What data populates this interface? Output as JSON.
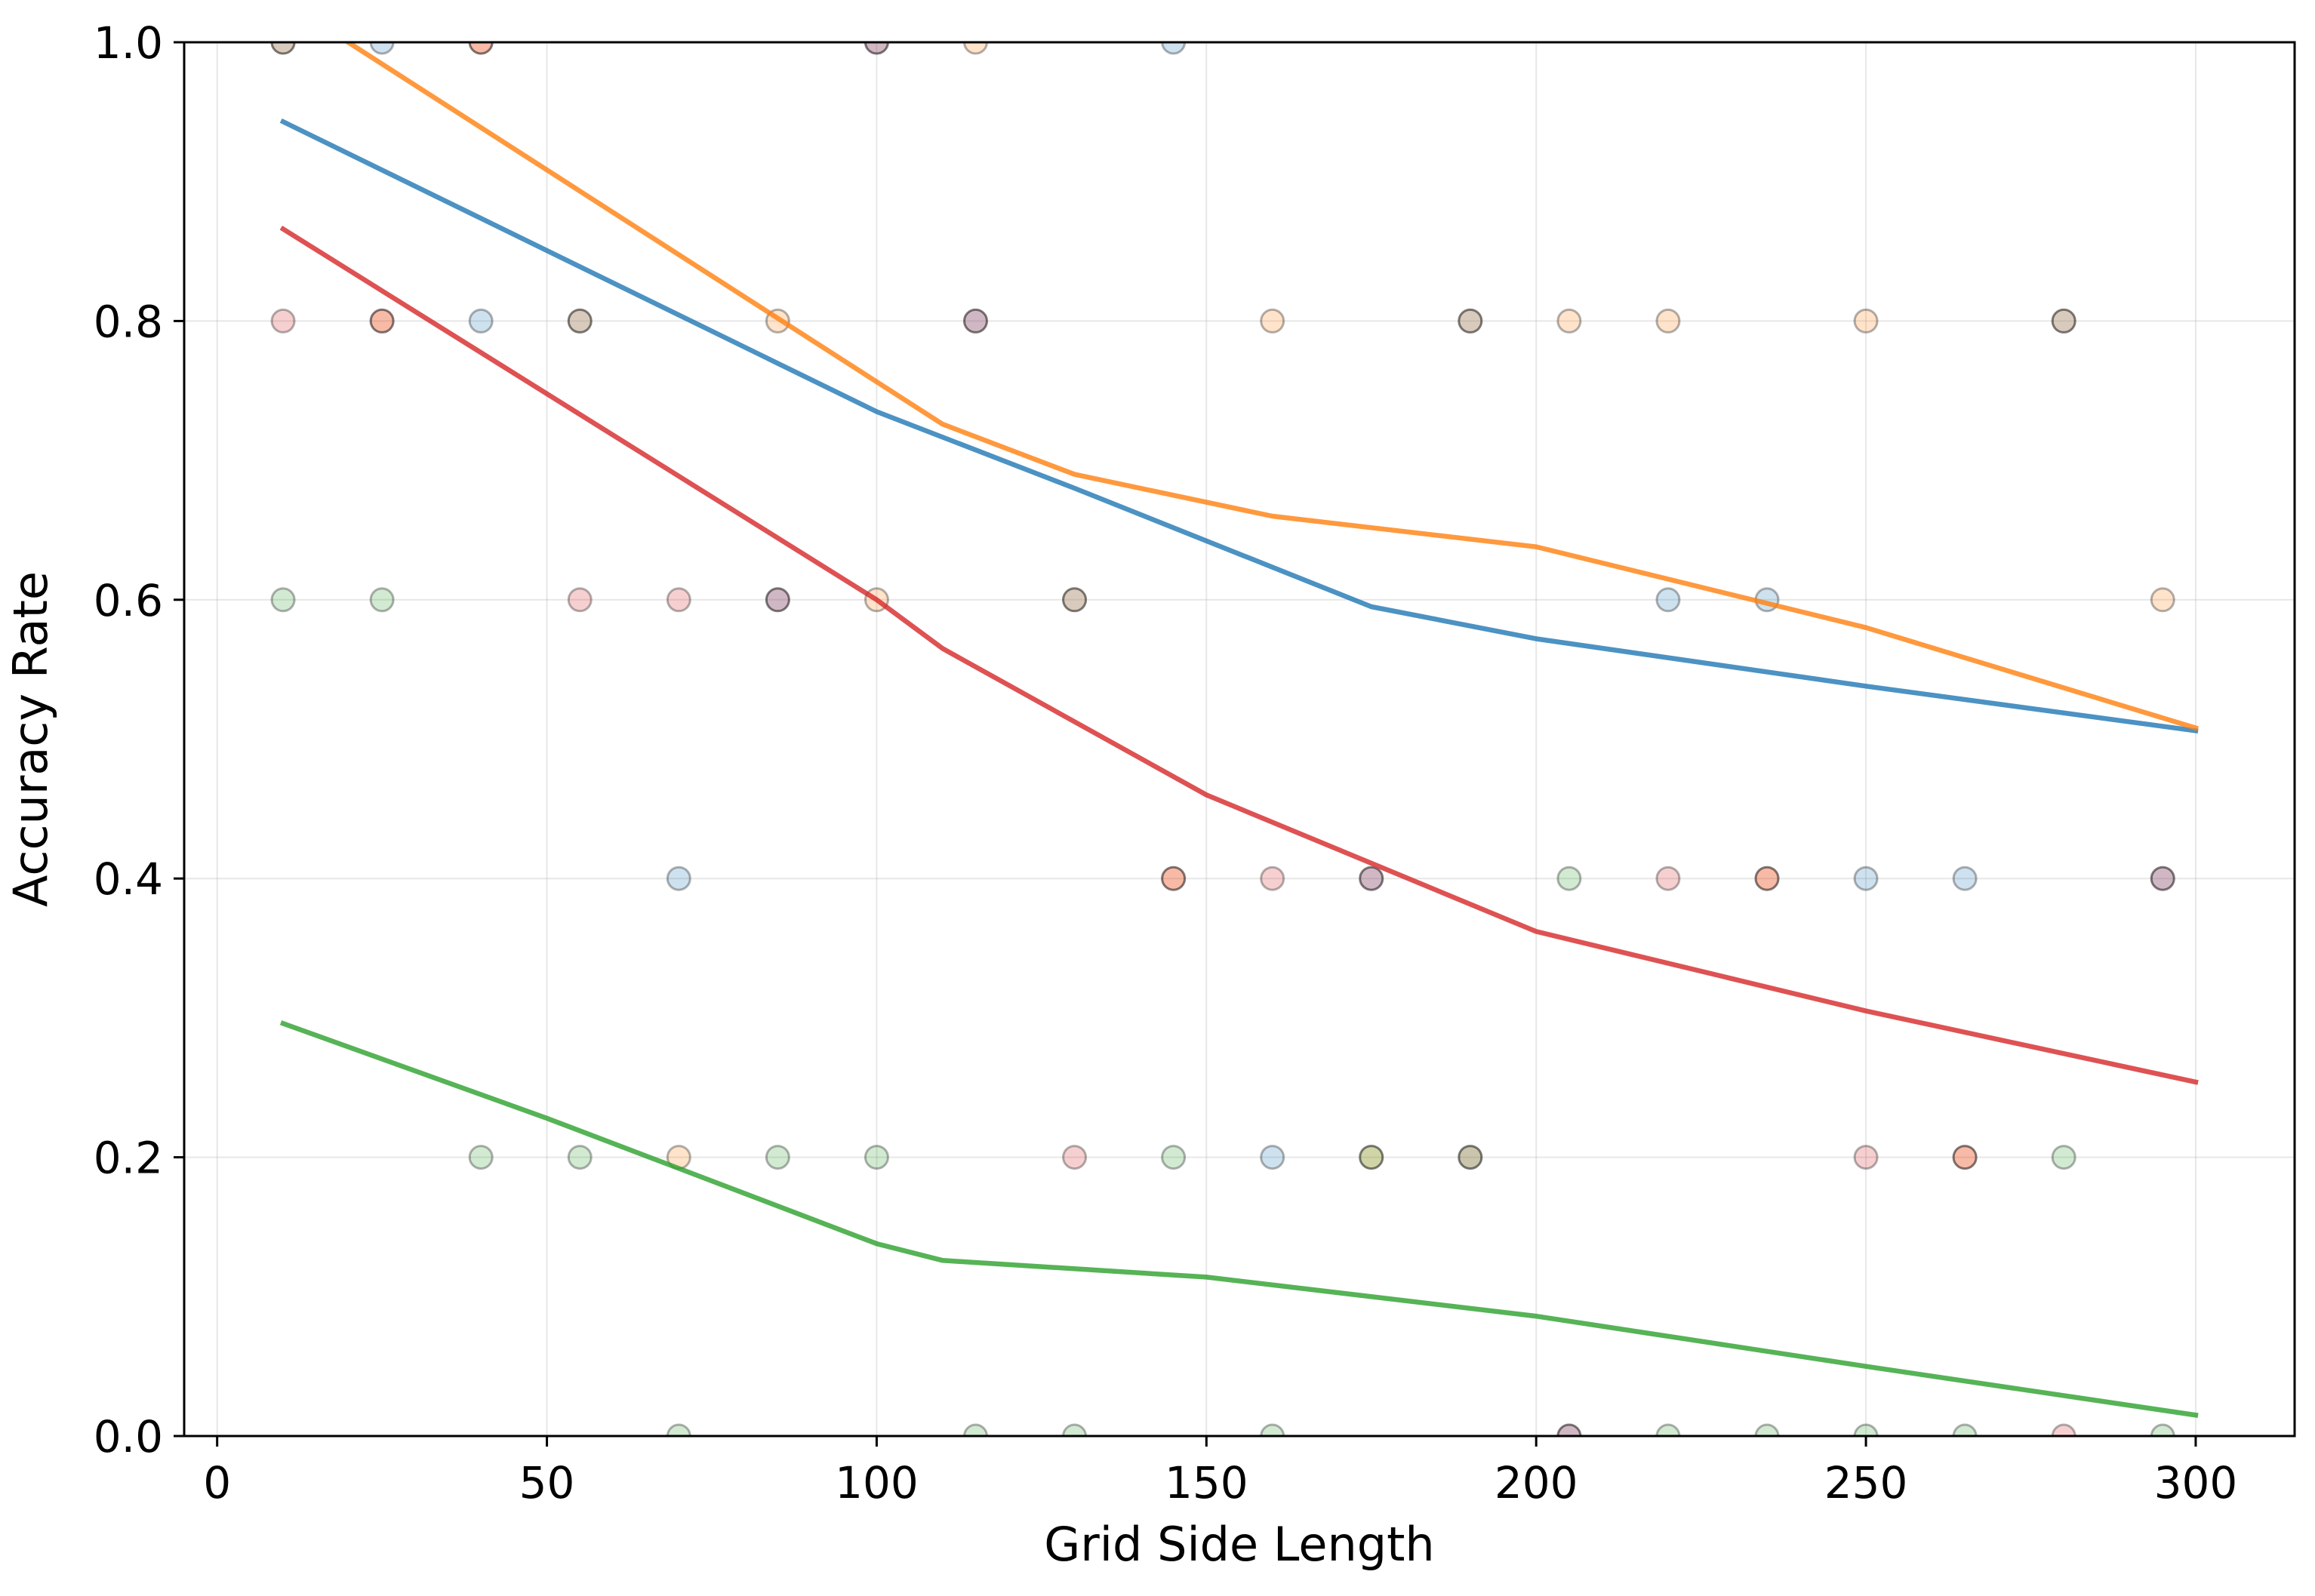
{
  "chart_data": {
    "type": "scatter",
    "title": "",
    "xlabel": "Grid Side Length",
    "ylabel": "Accuracy Rate",
    "xlim": [
      -5,
      315
    ],
    "ylim": [
      0.0,
      1.0
    ],
    "x_ticks": [
      0,
      50,
      100,
      150,
      200,
      250,
      300
    ],
    "x_tick_labels": [
      "0",
      "50",
      "100",
      "150",
      "200",
      "250",
      "300"
    ],
    "y_ticks": [
      0.0,
      0.2,
      0.4,
      0.6,
      0.8,
      1.0
    ],
    "y_tick_labels": [
      "0.0",
      "0.2",
      "0.4",
      "0.6",
      "0.8",
      "1.0"
    ],
    "grid": true,
    "legend": "none",
    "series": [
      {
        "color": "#1f77b4",
        "points": [
          {
            "x": 10,
            "y": 1.0
          },
          {
            "x": 25,
            "y": 1.0
          },
          {
            "x": 40,
            "y": 0.8
          },
          {
            "x": 55,
            "y": 0.8
          },
          {
            "x": 70,
            "y": 0.4
          },
          {
            "x": 85,
            "y": 0.6
          },
          {
            "x": 100,
            "y": 1.0
          },
          {
            "x": 115,
            "y": 0.8
          },
          {
            "x": 130,
            "y": 0.6
          },
          {
            "x": 145,
            "y": 1.0
          },
          {
            "x": 160,
            "y": 0.2
          },
          {
            "x": 175,
            "y": 0.4
          },
          {
            "x": 190,
            "y": 0.8
          },
          {
            "x": 205,
            "y": 0.0
          },
          {
            "x": 220,
            "y": 0.6
          },
          {
            "x": 235,
            "y": 0.6
          },
          {
            "x": 250,
            "y": 0.4
          },
          {
            "x": 265,
            "y": 0.4
          },
          {
            "x": 280,
            "y": 0.8
          },
          {
            "x": 295,
            "y": 0.4
          }
        ],
        "trend": [
          {
            "x": 10,
            "y": 0.943
          },
          {
            "x": 100,
            "y": 0.735
          },
          {
            "x": 130,
            "y": 0.68
          },
          {
            "x": 175,
            "y": 0.595
          },
          {
            "x": 200,
            "y": 0.572
          },
          {
            "x": 250,
            "y": 0.538
          },
          {
            "x": 300,
            "y": 0.506
          }
        ]
      },
      {
        "color": "#ff7f0e",
        "points": [
          {
            "x": 10,
            "y": 1.0
          },
          {
            "x": 25,
            "y": 0.8
          },
          {
            "x": 40,
            "y": 1.0
          },
          {
            "x": 55,
            "y": 0.8
          },
          {
            "x": 70,
            "y": 0.2
          },
          {
            "x": 85,
            "y": 0.8
          },
          {
            "x": 100,
            "y": 0.6
          },
          {
            "x": 115,
            "y": 1.0
          },
          {
            "x": 130,
            "y": 0.6
          },
          {
            "x": 145,
            "y": 0.4
          },
          {
            "x": 160,
            "y": 0.8
          },
          {
            "x": 175,
            "y": 0.2
          },
          {
            "x": 190,
            "y": 0.8
          },
          {
            "x": 205,
            "y": 0.8
          },
          {
            "x": 220,
            "y": 0.8
          },
          {
            "x": 235,
            "y": 0.4
          },
          {
            "x": 250,
            "y": 0.8
          },
          {
            "x": 265,
            "y": 0.2
          },
          {
            "x": 280,
            "y": 0.8
          },
          {
            "x": 295,
            "y": 0.6
          }
        ],
        "trend": [
          {
            "x": 10,
            "y": 1.03
          },
          {
            "x": 110,
            "y": 0.726
          },
          {
            "x": 130,
            "y": 0.69
          },
          {
            "x": 160,
            "y": 0.66
          },
          {
            "x": 200,
            "y": 0.638
          },
          {
            "x": 250,
            "y": 0.58
          },
          {
            "x": 300,
            "y": 0.508
          }
        ]
      },
      {
        "color": "#d62728",
        "points": [
          {
            "x": 10,
            "y": 0.8
          },
          {
            "x": 25,
            "y": 0.8
          },
          {
            "x": 40,
            "y": 1.0
          },
          {
            "x": 55,
            "y": 0.6
          },
          {
            "x": 70,
            "y": 0.6
          },
          {
            "x": 85,
            "y": 0.6
          },
          {
            "x": 100,
            "y": 1.0
          },
          {
            "x": 115,
            "y": 0.8
          },
          {
            "x": 130,
            "y": 0.2
          },
          {
            "x": 145,
            "y": 0.4
          },
          {
            "x": 160,
            "y": 0.4
          },
          {
            "x": 175,
            "y": 0.4
          },
          {
            "x": 190,
            "y": 0.2
          },
          {
            "x": 205,
            "y": 0.0
          },
          {
            "x": 220,
            "y": 0.4
          },
          {
            "x": 235,
            "y": 0.4
          },
          {
            "x": 250,
            "y": 0.2
          },
          {
            "x": 265,
            "y": 0.2
          },
          {
            "x": 280,
            "y": 0.0
          },
          {
            "x": 295,
            "y": 0.4
          }
        ],
        "trend": [
          {
            "x": 10,
            "y": 0.866
          },
          {
            "x": 100,
            "y": 0.6
          },
          {
            "x": 110,
            "y": 0.565
          },
          {
            "x": 150,
            "y": 0.46
          },
          {
            "x": 200,
            "y": 0.362
          },
          {
            "x": 250,
            "y": 0.305
          },
          {
            "x": 300,
            "y": 0.254
          }
        ]
      },
      {
        "color": "#2ca02c",
        "points": [
          {
            "x": 10,
            "y": 0.6
          },
          {
            "x": 25,
            "y": 0.6
          },
          {
            "x": 40,
            "y": 0.2
          },
          {
            "x": 55,
            "y": 0.2
          },
          {
            "x": 70,
            "y": 0.0
          },
          {
            "x": 85,
            "y": 0.2
          },
          {
            "x": 100,
            "y": 0.2
          },
          {
            "x": 115,
            "y": 0.0
          },
          {
            "x": 130,
            "y": 0.0
          },
          {
            "x": 145,
            "y": 0.2
          },
          {
            "x": 160,
            "y": 0.0
          },
          {
            "x": 175,
            "y": 0.2
          },
          {
            "x": 190,
            "y": 0.2
          },
          {
            "x": 205,
            "y": 0.4
          },
          {
            "x": 220,
            "y": 0.0
          },
          {
            "x": 235,
            "y": 0.0
          },
          {
            "x": 250,
            "y": 0.0
          },
          {
            "x": 265,
            "y": 0.0
          },
          {
            "x": 280,
            "y": 0.2
          },
          {
            "x": 295,
            "y": 0.0
          }
        ],
        "trend": [
          {
            "x": 10,
            "y": 0.296
          },
          {
            "x": 50,
            "y": 0.228
          },
          {
            "x": 100,
            "y": 0.138
          },
          {
            "x": 110,
            "y": 0.126
          },
          {
            "x": 150,
            "y": 0.114
          },
          {
            "x": 200,
            "y": 0.086
          },
          {
            "x": 250,
            "y": 0.05
          },
          {
            "x": 300,
            "y": 0.015
          }
        ]
      }
    ]
  }
}
